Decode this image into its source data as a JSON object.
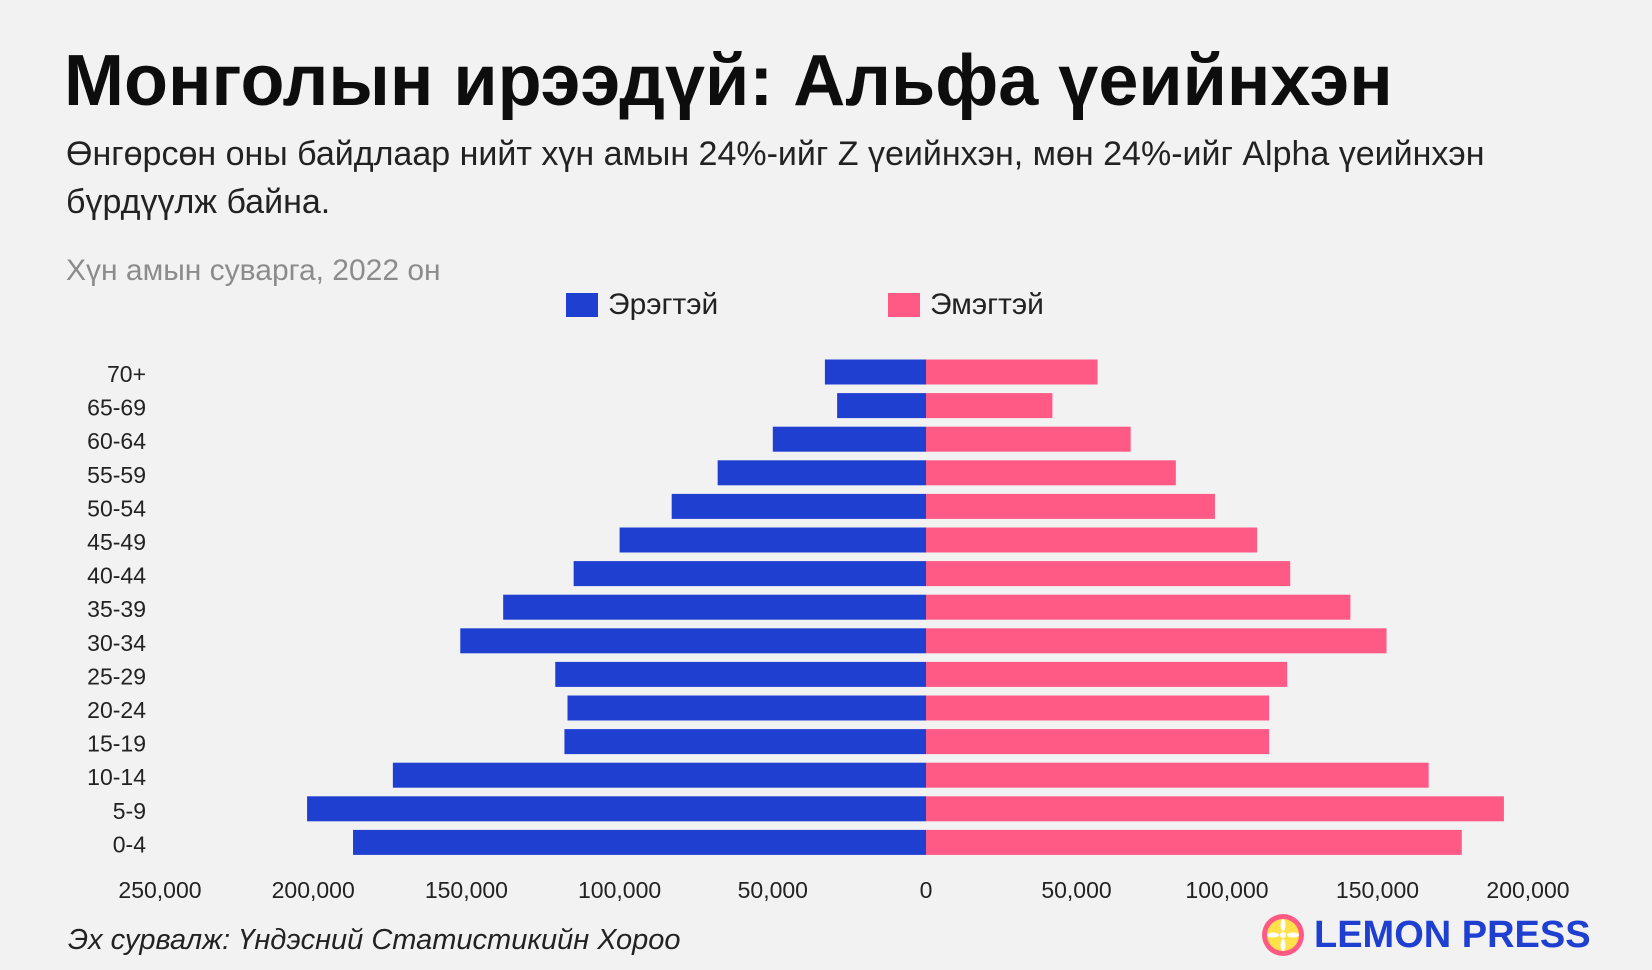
{
  "header": {
    "title": "Монголын ирээдүй: Альфа үеийнхэн",
    "subtitle": "Өнгөрсөн оны байдлаар нийт хүн амын 24%-ийг Z үеийнхэн, мөн 24%-ийг Alpha үеийнхэн бүрдүүлж байна.",
    "caption": "Хүн амын суварга, 2022 он"
  },
  "footer": {
    "source": "Эх сурвалж: Үндэсний Статистикийн Хороо",
    "brand": "LEMON PRESS",
    "brand_icon": "lemon-slice-icon"
  },
  "colors": {
    "male": "#1f3fd1",
    "female": "#ff5a85",
    "background": "#f2f2f2"
  },
  "chart_data": {
    "type": "bar",
    "orientation": "horizontal-pyramid",
    "categories": [
      "70+",
      "65-69",
      "60-64",
      "55-59",
      "50-54",
      "45-49",
      "40-44",
      "35-39",
      "30-34",
      "25-29",
      "20-24",
      "15-19",
      "10-14",
      "5-9",
      "0-4"
    ],
    "series": [
      {
        "name": "Эрэгтэй",
        "color": "#1f3fd1",
        "side": "left",
        "values": [
          33000,
          29000,
          50000,
          68000,
          83000,
          100000,
          115000,
          138000,
          152000,
          121000,
          117000,
          118000,
          174000,
          202000,
          187000
        ]
      },
      {
        "name": "Эмэгтэй",
        "color": "#ff5a85",
        "side": "right",
        "values": [
          57000,
          42000,
          68000,
          83000,
          96000,
          110000,
          121000,
          141000,
          153000,
          120000,
          114000,
          114000,
          167000,
          192000,
          178000
        ]
      }
    ],
    "x_ticks_left": [
      "250,000",
      "200,000",
      "150,000",
      "100,000",
      "50,000"
    ],
    "x_tick_zero": "0",
    "x_ticks_right": [
      "50,000",
      "100,000",
      "150,000",
      "200,000"
    ],
    "xlim_left": [
      0,
      250000
    ],
    "xlim_right": [
      0,
      210000
    ],
    "grid": false,
    "legend_position": "top-center"
  }
}
